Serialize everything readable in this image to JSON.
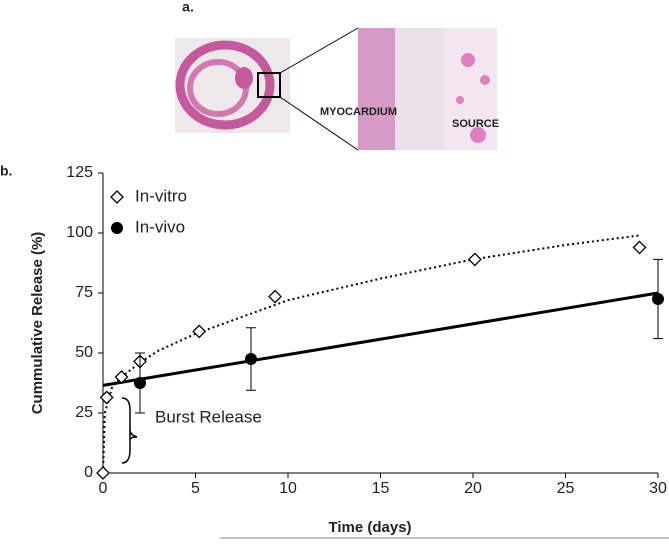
{
  "panel_a": {
    "label": "a.",
    "region_labels": [
      "MYOCARDIUM",
      "SOURCE"
    ]
  },
  "chart_data": {
    "type": "scatter",
    "panel_label": "b.",
    "x_label": "Time (days)",
    "y_label": "Cummulative Release (%)",
    "xlim": [
      0,
      30
    ],
    "xticks": [
      0,
      5,
      10,
      15,
      20,
      25,
      30
    ],
    "ylim": [
      0,
      125
    ],
    "yticks": [
      0,
      25,
      50,
      75,
      100,
      125
    ],
    "legend": "top-left",
    "annotation": "Burst Release",
    "series": [
      {
        "name": "In-vitro",
        "marker": "diamond",
        "color": "#000000",
        "x": [
          0,
          0.2,
          1,
          2,
          5.2,
          9.3,
          20.1,
          29
        ],
        "values": [
          0,
          31.5,
          40,
          46.5,
          59,
          73.5,
          89,
          94
        ]
      },
      {
        "name": "In-vivo",
        "marker": "circle",
        "color": "#000000",
        "x": [
          2,
          8,
          30
        ],
        "values": [
          37.5,
          47.5,
          72.5
        ],
        "errors": [
          12.5,
          13,
          16.5
        ]
      }
    ],
    "fits": [
      {
        "dash": true,
        "x": [
          0,
          0.1,
          0.5,
          1,
          2,
          3,
          5,
          10,
          15,
          20,
          25,
          29
        ],
        "values": [
          0,
          25,
          36,
          40,
          46,
          51,
          58,
          72,
          81,
          89,
          95,
          99
        ]
      },
      {
        "dash": false,
        "x": [
          0,
          30
        ],
        "values": [
          36.5,
          75
        ]
      }
    ]
  }
}
